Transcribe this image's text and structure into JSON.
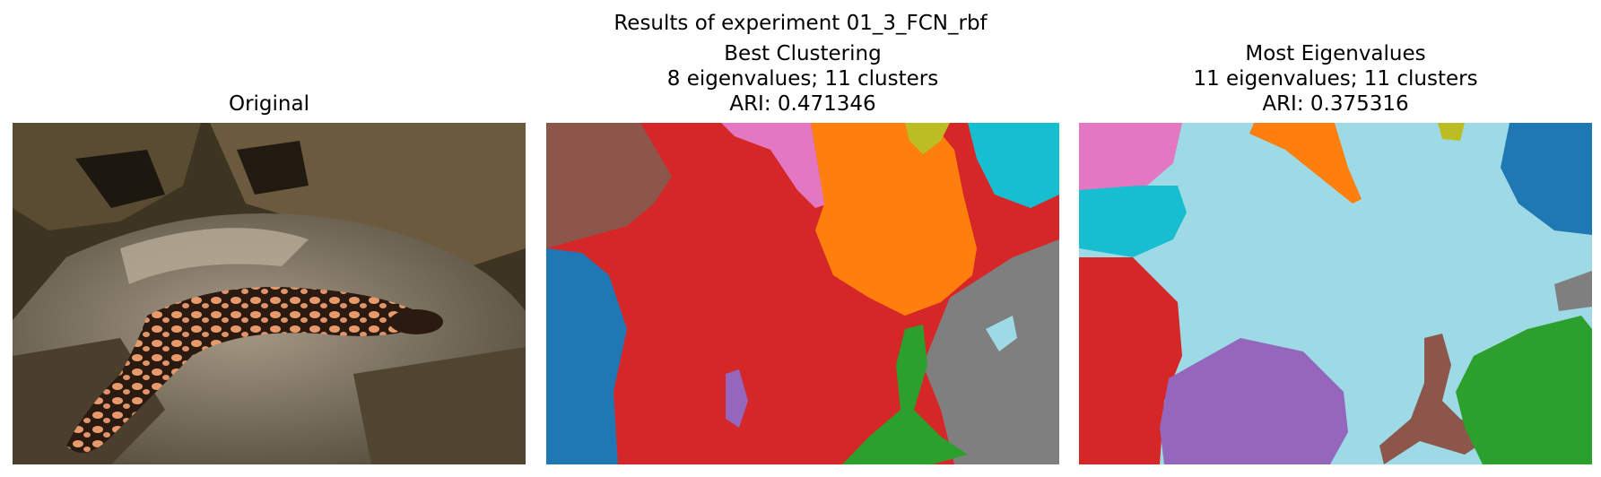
{
  "figure": {
    "suptitle": "Results of experiment 01_3_FCN_rbf"
  },
  "panels": {
    "original": {
      "title": "Original"
    },
    "best": {
      "title": "Best Clustering",
      "line2": "8 eigenvalues; 11 clusters",
      "line3": "ARI: 0.471346"
    },
    "most": {
      "title": "Most Eigenvalues",
      "line2": "11 eigenvalues; 11 clusters",
      "line3": "ARI: 0.375316"
    }
  },
  "colors": {
    "tab_blue": "#1f77b4",
    "tab_orange": "#ff7f0e",
    "tab_green": "#2ca02c",
    "tab_red": "#d62728",
    "tab_purple": "#9467bd",
    "tab_brown": "#8c564b",
    "tab_pink": "#e377c2",
    "tab_gray": "#7f7f7f",
    "tab_olive": "#bcbd22",
    "tab_cyan": "#17becf",
    "light_cyan": "#9edae5"
  }
}
